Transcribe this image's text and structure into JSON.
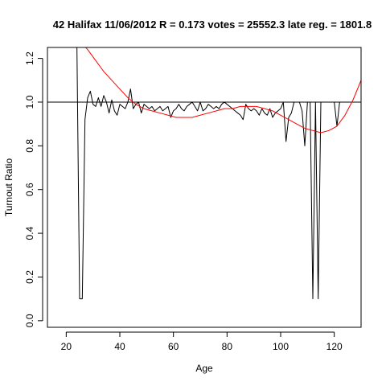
{
  "chart_data": {
    "type": "line",
    "title": "42 Halifax 11/06/2012 R = 0.173 votes = 25552.3 late reg. = 1801.8",
    "xlabel": "Age",
    "ylabel": "Turnout Ratio",
    "xlim": [
      13,
      130
    ],
    "ylim": [
      -0.03,
      1.25
    ],
    "xticks": [
      20,
      40,
      60,
      80,
      100,
      120
    ],
    "yticks": [
      0.0,
      0.2,
      0.4,
      0.6,
      0.8,
      1.0,
      1.2
    ],
    "xtick_labels": [
      "20",
      "40",
      "60",
      "80",
      "100",
      "120"
    ],
    "ytick_labels": [
      "0.0",
      "0.2",
      "0.4",
      "0.6",
      "0.8",
      "1.0",
      "1.2"
    ],
    "reference_line": {
      "y": 1.0
    },
    "grid": false,
    "series": [
      {
        "style": "line",
        "color": "#000000",
        "x": [
          22,
          23,
          24,
          25,
          26,
          27,
          28,
          29,
          30,
          31,
          32,
          33,
          34,
          35,
          36,
          37,
          38,
          39,
          40,
          41,
          42,
          43,
          44,
          45,
          46,
          47,
          48,
          49,
          50,
          51,
          52,
          53,
          54,
          55,
          56,
          57,
          58,
          59,
          60,
          61,
          62,
          63,
          64,
          65,
          66,
          67,
          68,
          69,
          70,
          71,
          72,
          73,
          74,
          75,
          76,
          77,
          78,
          79,
          80,
          81,
          82,
          83,
          84,
          85,
          86,
          87,
          88,
          89,
          90,
          91,
          92,
          93,
          94,
          95,
          96,
          97,
          98,
          99,
          100,
          101,
          102,
          103,
          104,
          105,
          106,
          107,
          108,
          109,
          110,
          111,
          112,
          113,
          114,
          115,
          116,
          117,
          118,
          119,
          120,
          121,
          122
        ],
        "y": [
          1.35,
          1.28,
          1.25,
          0.1,
          0.1,
          0.92,
          1.02,
          1.05,
          0.99,
          0.98,
          1.02,
          0.98,
          1.03,
          1.0,
          0.95,
          1.01,
          0.96,
          0.94,
          0.99,
          0.98,
          0.97,
          1.0,
          1.06,
          0.97,
          0.99,
          1.0,
          0.95,
          0.99,
          0.98,
          0.97,
          0.98,
          0.96,
          0.97,
          0.98,
          0.96,
          0.97,
          0.98,
          0.93,
          0.96,
          0.97,
          0.99,
          0.97,
          0.96,
          0.98,
          0.99,
          1.0,
          0.98,
          0.96,
          1.0,
          0.96,
          0.97,
          0.99,
          0.98,
          0.97,
          0.98,
          0.97,
          0.99,
          1.0,
          0.99,
          0.98,
          0.97,
          0.96,
          0.95,
          0.94,
          0.92,
          0.99,
          0.97,
          0.96,
          0.97,
          0.96,
          0.94,
          0.97,
          0.95,
          0.94,
          0.97,
          0.93,
          0.95,
          0.96,
          0.97,
          1.0,
          0.82,
          0.93,
          0.95,
          1.0,
          1.0,
          1.0,
          0.96,
          0.8,
          1.0,
          1.0,
          0.1,
          1.0,
          0.1,
          1.0,
          1.0,
          1.0,
          1.0,
          1.0,
          1.0,
          0.89,
          1.0
        ]
      },
      {
        "style": "line",
        "color": "#ff0000",
        "x": [
          22,
          25,
          28,
          31,
          34,
          37,
          40,
          43,
          46,
          49,
          52,
          55,
          58,
          61,
          64,
          67,
          70,
          73,
          76,
          79,
          82,
          85,
          88,
          91,
          94,
          97,
          100,
          103,
          106,
          109,
          112,
          115,
          118,
          121,
          124,
          127,
          130
        ],
        "y": [
          1.32,
          1.28,
          1.24,
          1.19,
          1.14,
          1.1,
          1.06,
          1.02,
          0.99,
          0.97,
          0.96,
          0.95,
          0.94,
          0.93,
          0.93,
          0.93,
          0.94,
          0.95,
          0.96,
          0.97,
          0.97,
          0.98,
          0.98,
          0.98,
          0.97,
          0.96,
          0.94,
          0.92,
          0.9,
          0.88,
          0.87,
          0.86,
          0.87,
          0.89,
          0.94,
          1.01,
          1.1
        ]
      }
    ]
  }
}
